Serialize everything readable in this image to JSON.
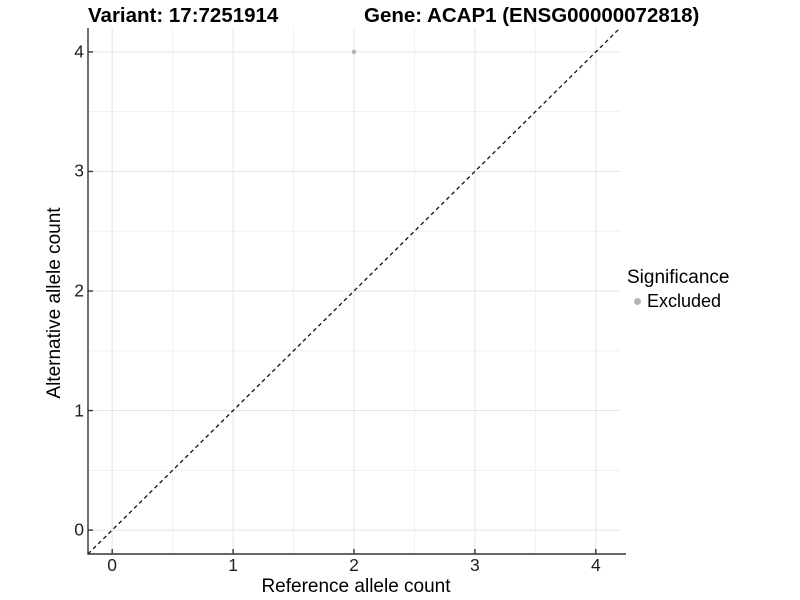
{
  "chart_data": {
    "type": "scatter",
    "variant_title": "Variant: 17:7251914",
    "gene_title": "Gene: ACAP1 (ENSG00000072818)",
    "xlabel": "Reference allele count",
    "ylabel": "Alternative allele count",
    "xlim": [
      -0.2,
      4.2
    ],
    "ylim": [
      -0.2,
      4.2
    ],
    "xticks": [
      0,
      1,
      2,
      3,
      4
    ],
    "yticks": [
      0,
      1,
      2,
      3,
      4
    ],
    "grid": "major and minor, minor at 0.5 steps",
    "points": [
      {
        "x": 2,
        "y": 4,
        "series": "Excluded"
      }
    ],
    "reference_line": {
      "type": "identity",
      "equation": "y = x",
      "style": "dashed"
    },
    "legend": {
      "title": "Significance",
      "position": "right",
      "items": [
        {
          "label": "Excluded",
          "marker": "circle",
          "color": "#b5b5b5"
        }
      ]
    }
  },
  "colors": {
    "background": "#ffffff",
    "major_grid": "#e4e4e4",
    "minor_grid": "#f1f1f1",
    "axis": "#333333",
    "tick_text": "#1f1f1f",
    "title_text": "#000000",
    "ref_line": "#111111",
    "point_excluded": "#b5b5b5"
  }
}
